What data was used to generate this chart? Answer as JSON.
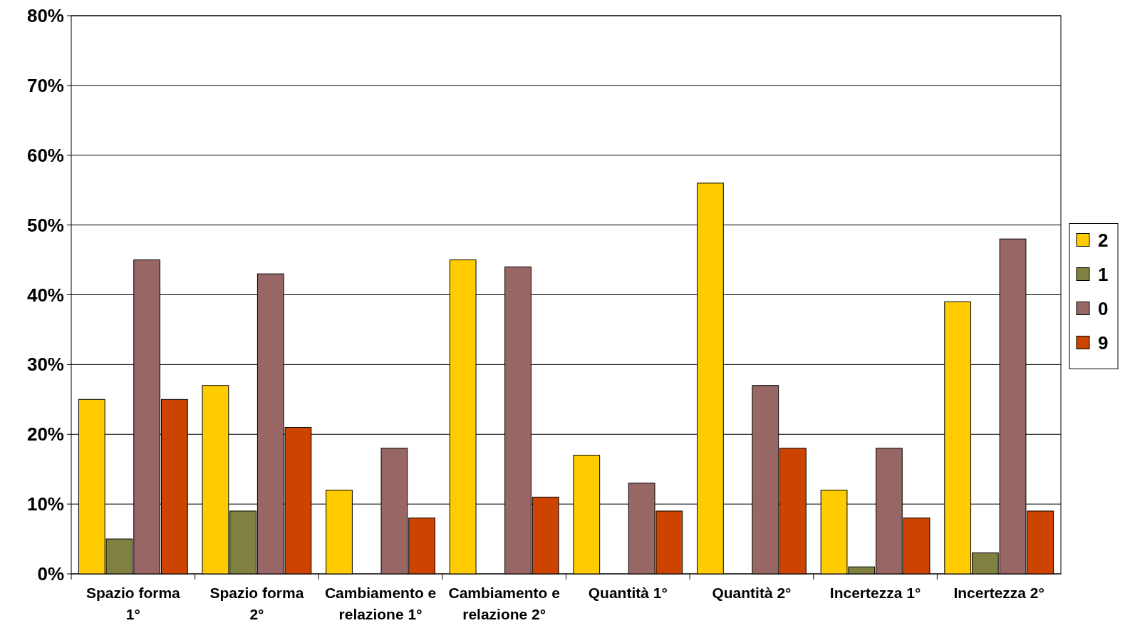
{
  "chart_data": {
    "type": "bar",
    "categories": [
      "Spazio forma 1°",
      "Spazio forma 2°",
      "Cambiamento e relazione 1°",
      "Cambiamento e relazione 2°",
      "Quantità 1°",
      "Quantità 2°",
      "Incertezza 1°",
      "Incertezza 2°"
    ],
    "series": [
      {
        "name": "2",
        "color": "#ffcc00",
        "values": [
          25,
          27,
          12,
          45,
          17,
          56,
          12,
          39
        ]
      },
      {
        "name": "1",
        "color": "#808040",
        "values": [
          5,
          9,
          0,
          0,
          0,
          0,
          1,
          3
        ]
      },
      {
        "name": "0",
        "color": "#996666",
        "values": [
          45,
          43,
          18,
          44,
          13,
          27,
          18,
          48
        ]
      },
      {
        "name": "9",
        "color": "#cc4400",
        "values": [
          25,
          21,
          8,
          11,
          9,
          18,
          8,
          9
        ]
      }
    ],
    "ylim": [
      0,
      80
    ],
    "yticks": [
      {
        "value": 0,
        "label": "0%"
      },
      {
        "value": 10,
        "label": "10%"
      },
      {
        "value": 20,
        "label": "20%"
      },
      {
        "value": 30,
        "label": "30%"
      },
      {
        "value": 40,
        "label": "40%"
      },
      {
        "value": 50,
        "label": "50%"
      },
      {
        "value": 60,
        "label": "60%"
      },
      {
        "value": 70,
        "label": "70%"
      },
      {
        "value": 80,
        "label": "80%"
      }
    ],
    "grid": "y",
    "legend": "right"
  }
}
